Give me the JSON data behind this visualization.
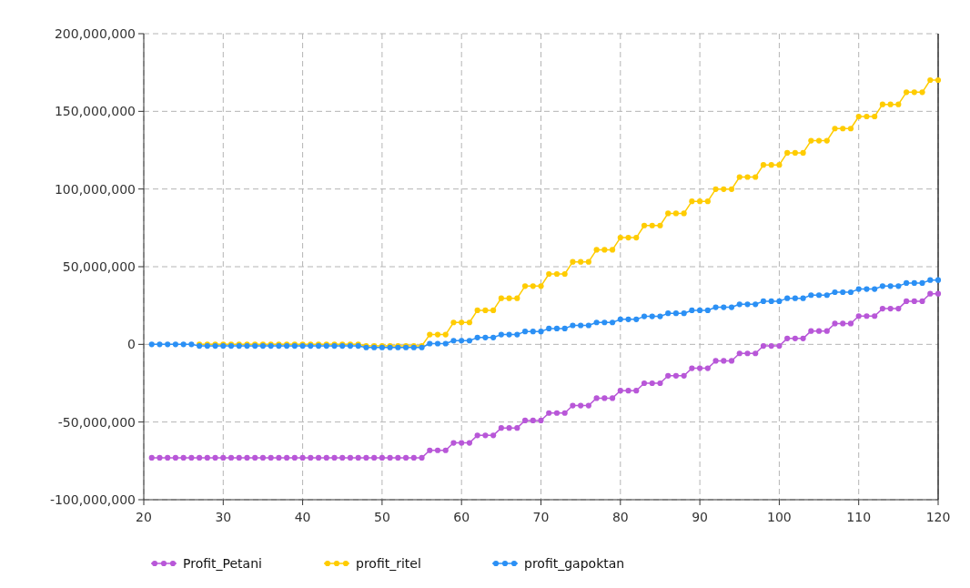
{
  "chart_data": {
    "type": "line",
    "x": [
      21,
      22,
      23,
      24,
      25,
      26,
      27,
      28,
      29,
      30,
      31,
      32,
      33,
      34,
      35,
      36,
      37,
      38,
      39,
      40,
      41,
      42,
      43,
      44,
      45,
      46,
      47,
      48,
      49,
      50,
      51,
      52,
      53,
      54,
      55,
      56,
      57,
      58,
      59,
      60,
      61,
      62,
      63,
      64,
      65,
      66,
      67,
      68,
      69,
      70,
      71,
      72,
      73,
      74,
      75,
      76,
      77,
      78,
      79,
      80,
      81,
      82,
      83,
      84,
      85,
      86,
      87,
      88,
      89,
      90,
      91,
      92,
      93,
      94,
      95,
      96,
      97,
      98,
      99,
      100,
      101,
      102,
      103,
      104,
      105,
      106,
      107,
      108,
      109,
      110,
      111,
      112,
      113,
      114,
      115,
      116,
      117,
      118,
      119,
      120
    ],
    "xlim": [
      20,
      120
    ],
    "xticks": [
      20,
      30,
      40,
      50,
      60,
      70,
      80,
      90,
      100,
      110,
      120
    ],
    "ylim": [
      -100000000,
      200000000
    ],
    "yticks": [
      {
        "value": -100000000,
        "label": "-100,000,000"
      },
      {
        "value": -50000000,
        "label": "-50,000,000"
      },
      {
        "value": 0,
        "label": "0"
      },
      {
        "value": 50000000,
        "label": "50,000,000"
      },
      {
        "value": 100000000,
        "label": "100,000,000"
      },
      {
        "value": 150000000,
        "label": "150,000,000"
      },
      {
        "value": 200000000,
        "label": "200,000,000"
      }
    ],
    "grid": true,
    "legend": "bottom",
    "marker": "circle",
    "line_style": "solid",
    "series": [
      {
        "name": "Profit_Petani",
        "color": "#b857d8",
        "values": [
          -73000000,
          -73000000,
          -73000000,
          -73000000,
          -73000000,
          -73000000,
          -73000000,
          -73000000,
          -73000000,
          -73000000,
          -73000000,
          -73000000,
          -73000000,
          -73000000,
          -73000000,
          -73000000,
          -73000000,
          -73000000,
          -73000000,
          -73000000,
          -73000000,
          -73000000,
          -73000000,
          -73000000,
          -73000000,
          -73000000,
          -73000000,
          -73000000,
          -73000000,
          -73000000,
          -73000000,
          -73000000,
          -73000000,
          -73000000,
          -73000000,
          -68200000,
          -68200000,
          -68200000,
          -63400000,
          -63400000,
          -63400000,
          -58600000,
          -58600000,
          -58600000,
          -53800000,
          -53800000,
          -53800000,
          -49000000,
          -49000000,
          -49000000,
          -44200000,
          -44200000,
          -44200000,
          -39400000,
          -39400000,
          -39400000,
          -34600000,
          -34600000,
          -34600000,
          -29800000,
          -29800000,
          -29800000,
          -25000000,
          -25000000,
          -25000000,
          -20200000,
          -20200000,
          -20200000,
          -15400000,
          -15400000,
          -15400000,
          -10600000,
          -10600000,
          -10600000,
          -5800000,
          -5800000,
          -5800000,
          -1000000,
          -1000000,
          -1000000,
          3800000,
          3800000,
          3800000,
          8600000,
          8600000,
          8600000,
          13400000,
          13400000,
          13400000,
          18200000,
          18200000,
          18200000,
          23000000,
          23000000,
          23000000,
          27800000,
          27800000,
          27800000,
          32600000,
          32600000
        ]
      },
      {
        "name": "profit_ritel",
        "color": "#ffcc00",
        "values": [
          null,
          null,
          null,
          null,
          null,
          null,
          0,
          0,
          0,
          0,
          0,
          0,
          0,
          0,
          0,
          0,
          0,
          0,
          0,
          0,
          0,
          0,
          0,
          0,
          0,
          0,
          0,
          -1000000,
          -1000000,
          -1000000,
          -1000000,
          -1000000,
          -1000000,
          -1000000,
          -1000000,
          6300000,
          6300000,
          6300000,
          14100000,
          14100000,
          14100000,
          21900000,
          21900000,
          21900000,
          29700000,
          29700000,
          29700000,
          37500000,
          37500000,
          37500000,
          45300000,
          45300000,
          45300000,
          53100000,
          53100000,
          53100000,
          60900000,
          60900000,
          60900000,
          68700000,
          68700000,
          68700000,
          76500000,
          76500000,
          76500000,
          84300000,
          84300000,
          84300000,
          92100000,
          92100000,
          92100000,
          99900000,
          99900000,
          99900000,
          107700000,
          107700000,
          107700000,
          115500000,
          115500000,
          115500000,
          123300000,
          123300000,
          123300000,
          131100000,
          131100000,
          131100000,
          138900000,
          138900000,
          138900000,
          146700000,
          146700000,
          146700000,
          154500000,
          154500000,
          154500000,
          162300000,
          162300000,
          162300000,
          170100000,
          170100000
        ]
      },
      {
        "name": "profit_gapoktan",
        "color": "#2b90f5",
        "values": [
          0,
          0,
          0,
          0,
          0,
          0,
          -1000000,
          -1000000,
          -1000000,
          -1000000,
          -1000000,
          -1000000,
          -1000000,
          -1000000,
          -1000000,
          -1000000,
          -1000000,
          -1000000,
          -1000000,
          -1000000,
          -1000000,
          -1000000,
          -1000000,
          -1000000,
          -1000000,
          -1000000,
          -1000000,
          -2000000,
          -2000000,
          -2000000,
          -2000000,
          -2000000,
          -2000000,
          -2000000,
          -2000000,
          500000,
          500000,
          500000,
          2400000,
          2400000,
          2400000,
          4400000,
          4400000,
          4400000,
          6300000,
          6300000,
          6300000,
          8300000,
          8300000,
          8300000,
          10200000,
          10200000,
          10200000,
          12200000,
          12200000,
          12200000,
          14100000,
          14100000,
          14100000,
          16100000,
          16100000,
          16100000,
          18000000,
          18000000,
          18000000,
          20000000,
          20000000,
          20000000,
          21900000,
          21900000,
          21900000,
          23900000,
          23900000,
          23900000,
          25800000,
          25800000,
          25800000,
          27800000,
          27800000,
          27800000,
          29700000,
          29700000,
          29700000,
          31700000,
          31700000,
          31700000,
          33600000,
          33600000,
          33600000,
          35600000,
          35600000,
          35600000,
          37500000,
          37500000,
          37500000,
          39500000,
          39500000,
          39500000,
          41400000,
          41400000
        ]
      }
    ]
  }
}
